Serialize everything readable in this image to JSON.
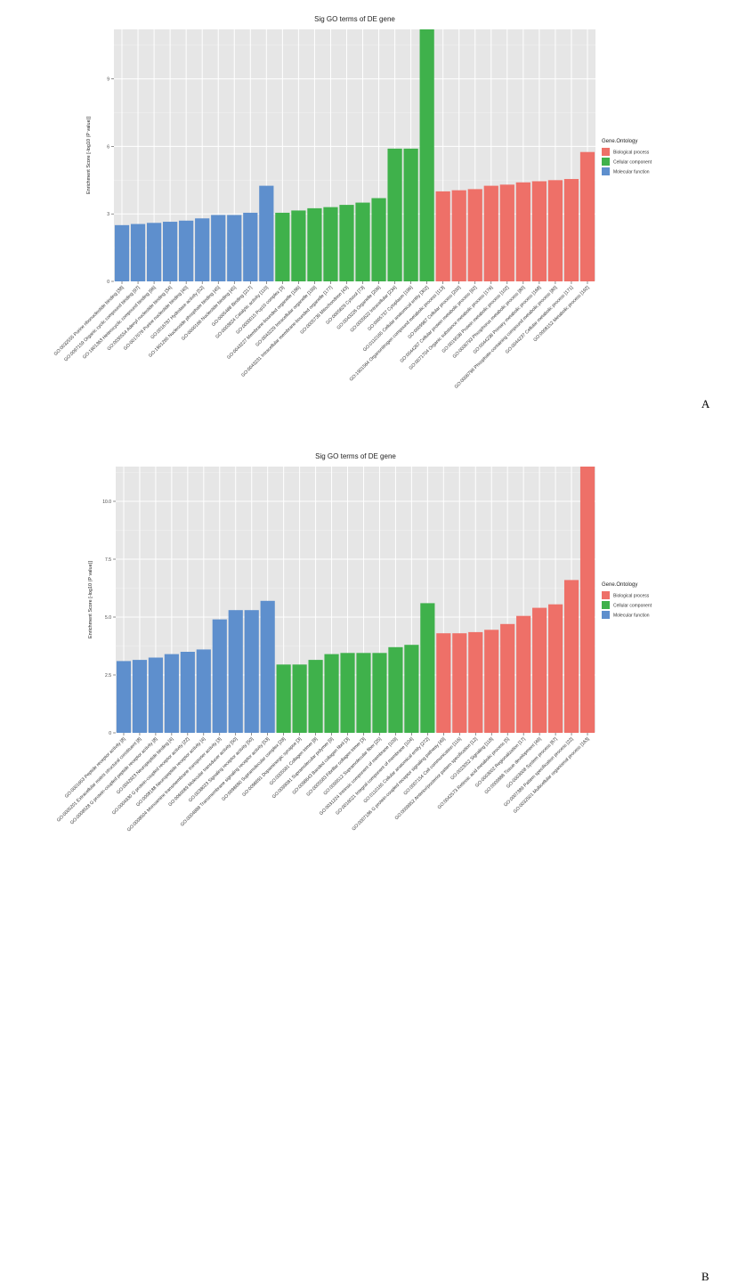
{
  "colors": {
    "Biological process": "#EE7068",
    "Cellular component": "#3FB14B",
    "Molecular function": "#5E8FCD"
  },
  "panels": {
    "A": {
      "label": "A"
    },
    "B": {
      "label": "B"
    }
  },
  "chart_data": [
    {
      "type": "bar",
      "title": "Sig GO terms of DE gene",
      "ylabel": "Enrichment Score [-log10 (P value)]",
      "legend_title": "Gene.Ontology",
      "legend_placement": "right",
      "legend_entries": [
        "Biological process",
        "Cellular component",
        "Molecular function"
      ],
      "ylim": [
        0,
        11.2
      ],
      "yticks": [
        0,
        3,
        6,
        9
      ],
      "grid": true,
      "categories": [
        "GO:0032555 Purine ribonucleotide binding [38]",
        "GO:0097159 Organic cyclic compound binding [97]",
        "GO:1901363 Heterocyclic compound binding [96]",
        "GO:0030554 Adenyl nucleotide binding [34]",
        "GO:0017076 Purine nucleotide binding [40]",
        "GO:0016787 Hydrolase activity [52]",
        "GO:1901265 Nucleoside phosphate binding [45]",
        "GO:0000166 Nucleotide binding [45]",
        "GO:0005488 Binding [217]",
        "GO:0003824 Catalytic activity [110]",
        "GO:0000015 Pcp10 complex [3]",
        "GO:0043227 Membrane-bounded organelle [186]",
        "GO:0043229 Intracellular organelle [199]",
        "GO:0043231 Intracellular membrane-bounded organelle [177]",
        "GO:0005739 Mitochondrion [43]",
        "GO:0005829 Cytosol [73]",
        "GO:0043226 Organelle [206]",
        "GO:0005622 Intracellular [234]",
        "GO:0005737 Cytoplasm [196]",
        "GO:0110165 Cellular anatomical entity [302]",
        "GO:1901564 Organonitrogen compound metabolic process [113]",
        "GO:0009987 Cellular process [200]",
        "GO:0044267 Cellular protein metabolic process [92]",
        "GO:0071704 Organic substance metabolic process [176]",
        "GO:0019538 Protein metabolic process [102]",
        "GO:0006793 Phosphorus metabolic process [80]",
        "GO:0044238 Primary metabolic process [168]",
        "GO:0006796 Phosphate-containing compound metabolic process [80]",
        "GO:0044237 Cellular metabolic process [171]",
        "GO:0008152 Metabolic process [192]"
      ],
      "groups": [
        "Molecular function",
        "Molecular function",
        "Molecular function",
        "Molecular function",
        "Molecular function",
        "Molecular function",
        "Molecular function",
        "Molecular function",
        "Molecular function",
        "Molecular function",
        "Cellular component",
        "Cellular component",
        "Cellular component",
        "Cellular component",
        "Cellular component",
        "Cellular component",
        "Cellular component",
        "Cellular component",
        "Cellular component",
        "Cellular component",
        "Biological process",
        "Biological process",
        "Biological process",
        "Biological process",
        "Biological process",
        "Biological process",
        "Biological process",
        "Biological process",
        "Biological process",
        "Biological process"
      ],
      "values": [
        2.5,
        2.55,
        2.6,
        2.65,
        2.7,
        2.8,
        2.95,
        2.95,
        3.05,
        4.25,
        3.05,
        3.15,
        3.25,
        3.3,
        3.4,
        3.5,
        3.7,
        5.9,
        5.9,
        11.2,
        4.0,
        4.05,
        4.1,
        4.25,
        4.3,
        4.4,
        4.45,
        4.5,
        4.55,
        5.75
      ]
    },
    {
      "type": "bar",
      "title": "Sig GO terms of DE gene",
      "ylabel": "Enrichment Score [-log10 (P value)]",
      "legend_title": "Gene.Ontology",
      "legend_placement": "right",
      "legend_entries": [
        "Biological process",
        "Cellular component",
        "Molecular function"
      ],
      "ylim": [
        0,
        11.5
      ],
      "yticks": [
        0,
        2.5,
        5.0,
        7.5,
        10.0
      ],
      "ytick_labels": [
        "0",
        "2.5",
        "5.0",
        "7.5",
        "10.0"
      ],
      "grid": true,
      "categories": [
        "GO:0001653 Peptide receptor activity [8]",
        "GO:0005201 Extracellular matrix structural constituent [8]",
        "GO:0008528 G protein-coupled peptide receptor activity [8]",
        "GO:0042923 Neuropeptide binding [4]",
        "GO:0004930 G protein-coupled receptor activity [22]",
        "GO:0008188 Neuropeptide receptor activity [4]",
        "GO:0008504 Monoamine transmembrane transporter activity [3]",
        "GO:0060089 Molecular transducer activity [50]",
        "GO:0038023 Signaling receptor activity [50]",
        "GO:0004888 Transmembrane signaling receptor activity [53]",
        "GO:0098690 Supramolecular complex [28]",
        "GO:0098691 Dopaminergic synapse [3]",
        "GO:0005581 Collagen trimer [8]",
        "GO:0099081 Supramolecular polymer [9]",
        "GO:0098643 Banded collagen fibril [3]",
        "GO:0005583 Fibrillar collagen trimer [3]",
        "GO:0099512 Supramolecular fiber [25]",
        "GO:0031224 Intrinsic component of membrane [109]",
        "GO:0016021 Integral component of membrane [104]",
        "GO:0110165 Cellular anatomical entity [272]",
        "GO:0007186 G protein-coupled receptor signaling pathway [49]",
        "GO:0007154 Cell communication [116]",
        "GO:0009952 Anterior/posterior pattern specification [12]",
        "GO:0023052 Signaling [118]",
        "GO:0042573 Retinoic acid metabolic process [5]",
        "GO:0003002 Regionalization [17]",
        "GO:0009888 Tissue development [49]",
        "GO:0003008 System process [67]",
        "GO:0007389 Pattern specification process [22]",
        "GO:0032501 Multicellular organismal process [163]"
      ],
      "groups": [
        "Molecular function",
        "Molecular function",
        "Molecular function",
        "Molecular function",
        "Molecular function",
        "Molecular function",
        "Molecular function",
        "Molecular function",
        "Molecular function",
        "Molecular function",
        "Cellular component",
        "Cellular component",
        "Cellular component",
        "Cellular component",
        "Cellular component",
        "Cellular component",
        "Cellular component",
        "Cellular component",
        "Cellular component",
        "Cellular component",
        "Biological process",
        "Biological process",
        "Biological process",
        "Biological process",
        "Biological process",
        "Biological process",
        "Biological process",
        "Biological process",
        "Biological process",
        "Biological process"
      ],
      "values": [
        3.1,
        3.15,
        3.25,
        3.4,
        3.5,
        3.6,
        4.9,
        5.3,
        5.3,
        5.7,
        2.95,
        2.95,
        3.15,
        3.4,
        3.45,
        3.45,
        3.45,
        3.7,
        3.8,
        5.6,
        4.3,
        4.3,
        4.35,
        4.45,
        4.7,
        5.05,
        5.4,
        5.55,
        6.6,
        11.5
      ]
    }
  ]
}
